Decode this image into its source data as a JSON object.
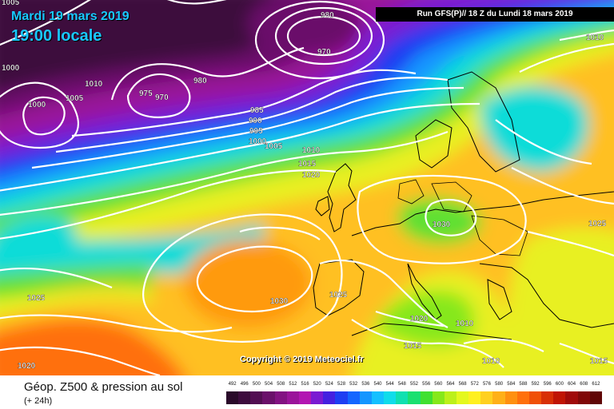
{
  "header": {
    "date": "Mardi 19 mars 2019",
    "time": "19:00 locale",
    "run": "Run GFS(P)// 18 Z du Lundi 18 mars 2019"
  },
  "copyright": "Copyright © 2019 Meteociel.fr",
  "footer": {
    "title": "Géop. Z500 & pression au sol",
    "subtitle": "(+ 24h)"
  },
  "isobar_labels": [
    "1005",
    "1000",
    "1000",
    "1010",
    "1005",
    "975",
    "970",
    "980",
    "985",
    "990",
    "995",
    "1000",
    "1005",
    "1010",
    "1015",
    "1020",
    "980",
    "970",
    "1010",
    "1030",
    "1025",
    "1030",
    "1025",
    "1025",
    "1020",
    "1015",
    "1010",
    "1020",
    "1015",
    "1010"
  ],
  "legend": {
    "labels": [
      "492",
      "496",
      "500",
      "504",
      "508",
      "512",
      "516",
      "520",
      "524",
      "528",
      "532",
      "536",
      "540",
      "544",
      "548",
      "552",
      "556",
      "560",
      "564",
      "568",
      "572",
      "576",
      "580",
      "584",
      "588",
      "592",
      "596",
      "600",
      "604",
      "608",
      "612"
    ],
    "colors": [
      "#2a0a2a",
      "#3d0c3d",
      "#520e52",
      "#6a106a",
      "#821282",
      "#9a149a",
      "#b216b2",
      "#7a1ad2",
      "#4420e0",
      "#1e3ef2",
      "#1466ff",
      "#1496ff",
      "#14c0ff",
      "#10dcea",
      "#10e0b0",
      "#1ae070",
      "#40e030",
      "#86e81a",
      "#bcf01a",
      "#e4f81e",
      "#fff020",
      "#ffd020",
      "#ffb018",
      "#ff9010",
      "#ff700c",
      "#f05008",
      "#d83006",
      "#c01404",
      "#a00a0a",
      "#800808",
      "#600606"
    ]
  }
}
